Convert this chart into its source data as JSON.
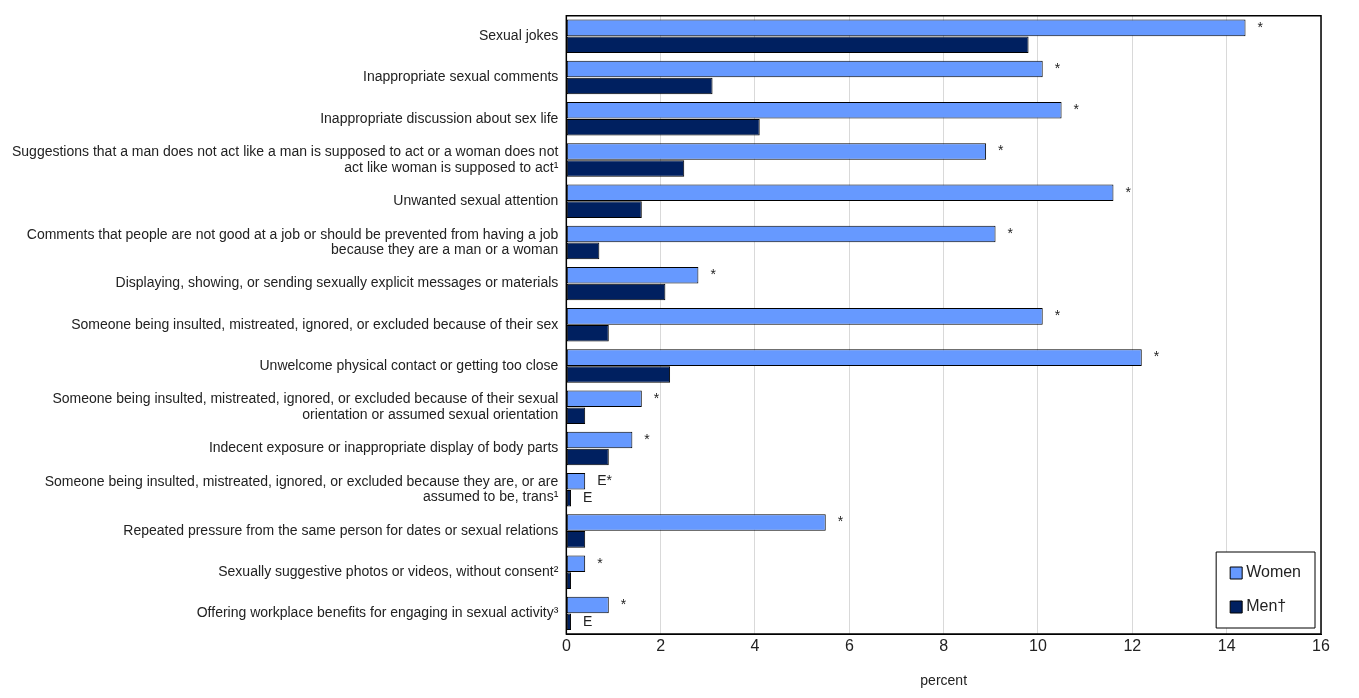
{
  "chart_data": {
    "type": "bar",
    "orientation": "horizontal",
    "xlabel": "percent",
    "categories": [
      "Sexual jokes",
      "Inappropriate sexual comments",
      "Inappropriate discussion about sex life",
      "Suggestions that a man does not act like a man is supposed to act or a woman does not act like woman is supposed to act¹",
      "Unwanted sexual attention",
      "Comments that people are not good at a job or should be prevented from having a job because they are a man or a woman",
      "Displaying, showing, or sending sexually explicit messages or materials",
      "Someone being insulted, mistreated, ignored, or excluded because of their sex",
      "Unwelcome physical contact or getting too close",
      "Someone being insulted, mistreated, ignored, or excluded because of their sexual orientation or assumed sexual orientation",
      "Indecent exposure or inappropriate display of body parts",
      "Someone being insulted, mistreated, ignored, or excluded because they are, or are assumed to be, trans¹",
      "Repeated pressure from the same person for dates or sexual relations",
      "Sexually suggestive photos or videos, without consent²",
      "Offering workplace benefits for engaging in sexual activity³"
    ],
    "series": [
      {
        "name": "Women",
        "color": "#6699ff",
        "values": [
          14.4,
          10.1,
          10.5,
          8.9,
          11.6,
          9.1,
          2.8,
          10.1,
          12.2,
          1.6,
          1.4,
          0.4,
          5.5,
          0.4,
          0.9
        ],
        "value_labels": [
          "*",
          "*",
          "*",
          "*",
          "*",
          "*",
          "*",
          "*",
          "*",
          "*",
          "*",
          "E*",
          "*",
          "*",
          "*"
        ]
      },
      {
        "name": "Men†",
        "color": "#002060",
        "values": [
          9.8,
          3.1,
          4.1,
          2.5,
          1.6,
          0.7,
          2.1,
          0.9,
          2.2,
          0.4,
          0.9,
          0.1,
          0.4,
          0.1,
          0.1
        ],
        "value_labels": [
          null,
          null,
          null,
          null,
          null,
          null,
          null,
          null,
          null,
          null,
          null,
          "E",
          null,
          null,
          "E"
        ]
      }
    ],
    "xlim": [
      0,
      16
    ],
    "xticks": [
      0,
      2,
      4,
      6,
      8,
      10,
      12,
      14,
      16
    ],
    "grid": "x",
    "legend": "bottom right"
  }
}
